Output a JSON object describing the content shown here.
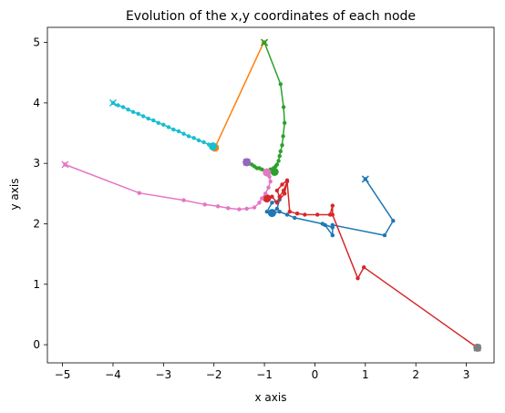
{
  "chart_data": {
    "type": "line",
    "title": "Evolution of the x,y coordinates of each node",
    "xlabel": "x axis",
    "ylabel": "y axis",
    "xlim": [
      -5.3,
      3.55
    ],
    "ylim": [
      -0.3,
      5.25
    ],
    "xticks": [
      -5,
      -4,
      -3,
      -2,
      -1,
      0,
      1,
      2,
      3
    ],
    "yticks": [
      0,
      1,
      2,
      3,
      4,
      5
    ],
    "grid": false,
    "legend": "none",
    "series": [
      {
        "color": "#1f77b4",
        "start": [
          1.0,
          2.74
        ],
        "end": [
          -0.85,
          2.18
        ],
        "x": [
          1.0,
          1.55,
          1.38,
          0.35,
          0.35,
          0.2,
          0.35,
          0.15,
          -0.4,
          -0.55,
          -0.7,
          -0.85,
          -0.95,
          -0.85,
          -0.7,
          -0.75,
          -0.85
        ],
        "y": [
          2.74,
          2.05,
          1.81,
          1.98,
          1.81,
          1.98,
          1.94,
          2.0,
          2.1,
          2.15,
          2.2,
          2.18,
          2.2,
          2.35,
          2.4,
          2.25,
          2.18
        ]
      },
      {
        "color": "#ff7f0e",
        "start": [
          -1.0,
          5.0
        ],
        "end": [
          -1.98,
          3.26
        ],
        "x": [
          -1.0,
          -1.02,
          -1.98
        ],
        "y": [
          5.0,
          4.99,
          3.26
        ]
      },
      {
        "color": "#2ca02c",
        "start": [
          -1.0,
          5.0
        ],
        "end": [
          -0.8,
          2.86
        ],
        "x": [
          -1.0,
          -0.68,
          -0.62,
          -0.6,
          -0.63,
          -0.65,
          -0.68,
          -0.7,
          -0.72,
          -0.75,
          -0.78,
          -0.82,
          -0.88,
          -0.95,
          -1.05,
          -1.15,
          -1.2,
          -1.25,
          -1.1,
          -0.95,
          -0.8
        ],
        "y": [
          5.0,
          4.31,
          3.93,
          3.67,
          3.45,
          3.3,
          3.2,
          3.12,
          3.04,
          2.98,
          2.95,
          2.92,
          2.9,
          2.88,
          2.9,
          2.92,
          2.95,
          2.98,
          2.92,
          2.88,
          2.86
        ]
      },
      {
        "color": "#d62728",
        "start": [
          3.22,
          -0.05
        ],
        "end": [
          -0.95,
          2.42
        ],
        "x": [
          3.22,
          0.97,
          0.85,
          0.35,
          0.35,
          0.3,
          0.05,
          -0.2,
          -0.35,
          -0.5,
          -0.55,
          -0.62,
          -0.7,
          -0.75,
          -0.65,
          -0.55,
          -0.6,
          -0.75,
          -0.85,
          -0.95
        ],
        "y": [
          -0.05,
          1.28,
          1.1,
          2.15,
          2.3,
          2.15,
          2.15,
          2.15,
          2.17,
          2.2,
          2.7,
          2.55,
          2.45,
          2.55,
          2.65,
          2.72,
          2.5,
          2.35,
          2.45,
          2.42
        ]
      },
      {
        "color": "#9467bd",
        "start": [
          -1.35,
          3.02
        ],
        "end": [
          -1.35,
          3.02
        ],
        "x": [
          -1.35
        ],
        "y": [
          3.02
        ]
      },
      {
        "color": "#e377c2",
        "start": [
          -4.95,
          2.98
        ],
        "end": [
          -0.95,
          2.85
        ],
        "x": [
          -4.95,
          -3.48,
          -2.6,
          -2.18,
          -1.92,
          -1.72,
          -1.5,
          -1.35,
          -1.2,
          -1.1,
          -1.05,
          -0.98,
          -0.92,
          -0.88,
          -0.9,
          -0.95,
          -0.95
        ],
        "y": [
          2.98,
          2.51,
          2.39,
          2.32,
          2.29,
          2.26,
          2.24,
          2.25,
          2.27,
          2.35,
          2.42,
          2.5,
          2.6,
          2.7,
          2.78,
          2.82,
          2.85
        ]
      },
      {
        "color": "#17becf",
        "start": [
          -4.0,
          4.0
        ],
        "end": [
          -2.02,
          3.28
        ],
        "x": [
          -4.0,
          -3.9,
          -3.8,
          -3.7,
          -3.6,
          -3.5,
          -3.4,
          -3.3,
          -3.2,
          -3.1,
          -3.0,
          -2.9,
          -2.8,
          -2.7,
          -2.6,
          -2.5,
          -2.4,
          -2.3,
          -2.2,
          -2.1,
          -2.02
        ],
        "y": [
          4.0,
          3.96,
          3.93,
          3.89,
          3.85,
          3.82,
          3.78,
          3.74,
          3.71,
          3.67,
          3.64,
          3.6,
          3.56,
          3.53,
          3.49,
          3.45,
          3.42,
          3.38,
          3.35,
          3.31,
          3.28
        ]
      },
      {
        "color": "#7f7f7f",
        "start": [
          3.22,
          -0.05
        ],
        "end": [
          3.22,
          -0.05
        ],
        "x": [
          3.22
        ],
        "y": [
          -0.05
        ]
      }
    ]
  }
}
